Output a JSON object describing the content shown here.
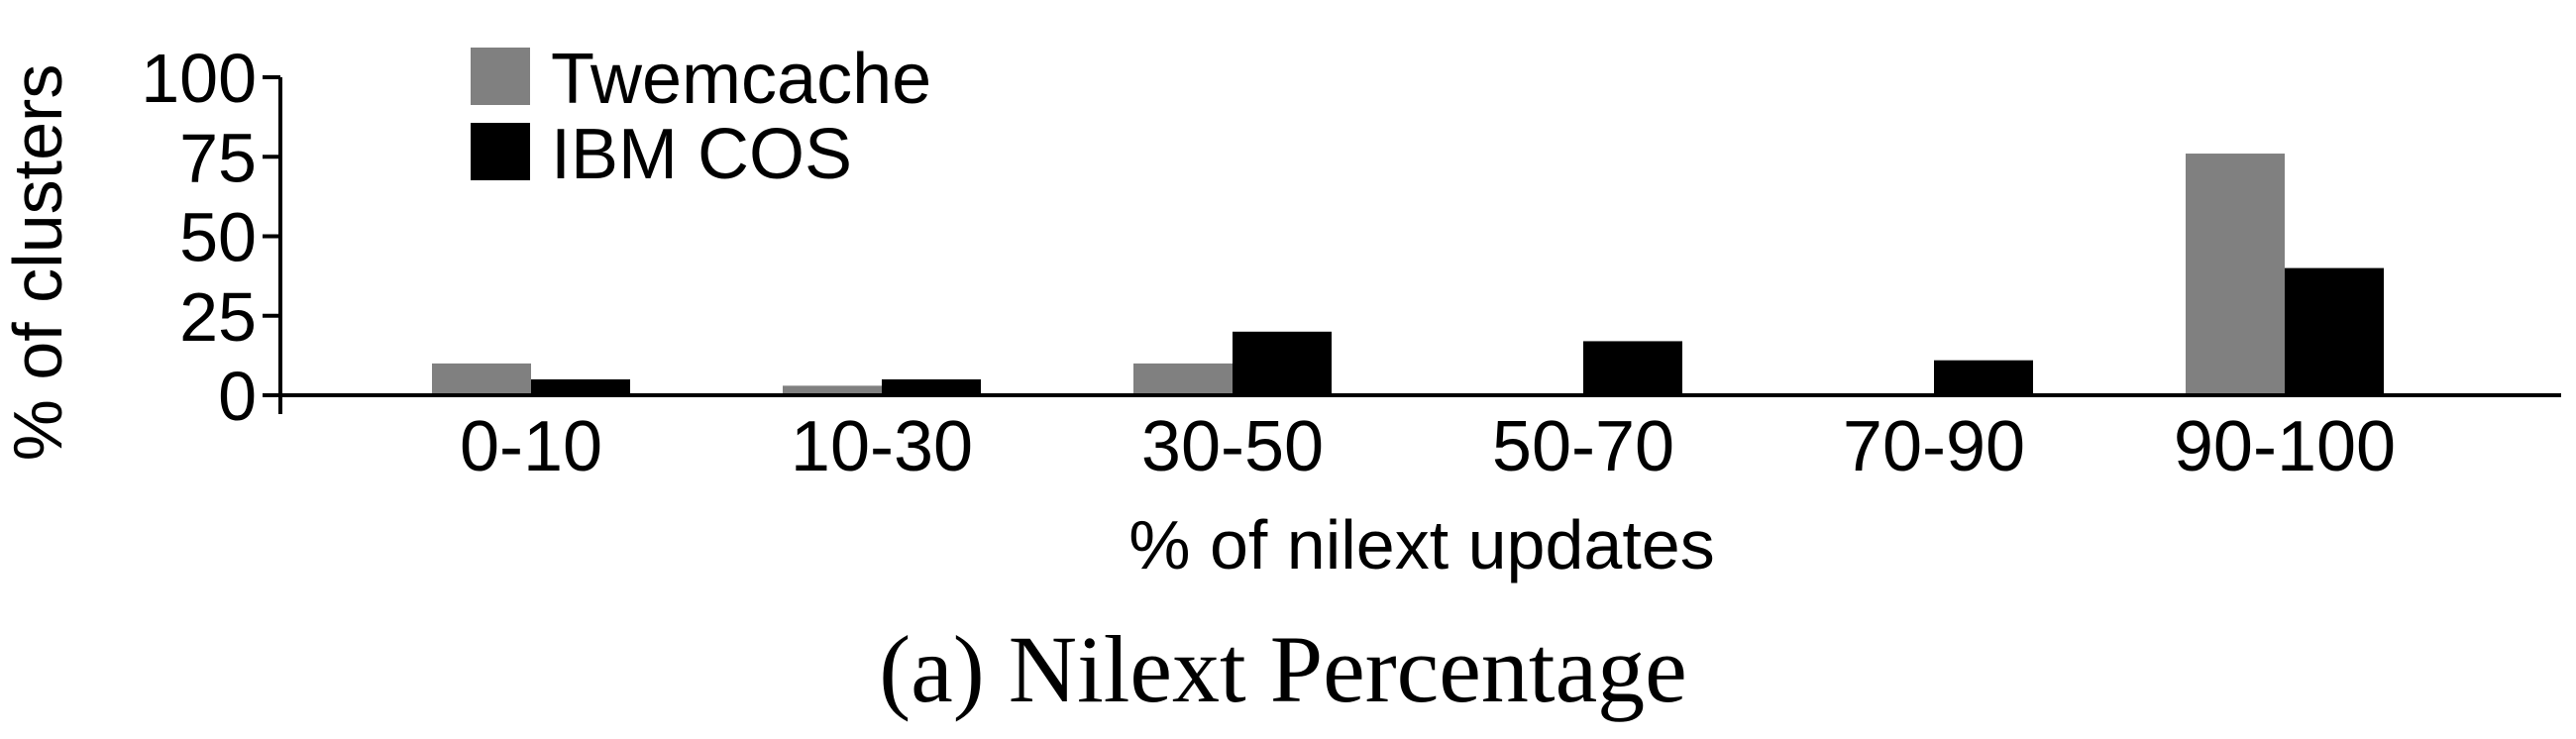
{
  "chart_data": {
    "type": "bar",
    "categories": [
      "0-10",
      "10-30",
      "30-50",
      "50-70",
      "70-90",
      "90-100"
    ],
    "series": [
      {
        "name": "Twemcache",
        "color": "#808080",
        "values": [
          10,
          3,
          10,
          0,
          0,
          76
        ]
      },
      {
        "name": "IBM COS",
        "color": "#000000",
        "values": [
          5,
          5,
          20,
          17,
          11,
          40
        ]
      }
    ],
    "xlabel": "% of nilext updates",
    "ylabel": "% of clusters",
    "ylim": [
      0,
      100
    ],
    "yticks": [
      "0",
      "25",
      "50",
      "75",
      "100"
    ],
    "caption": "(a) Nilext Percentage",
    "legend_position": "top-left",
    "grid": false
  }
}
